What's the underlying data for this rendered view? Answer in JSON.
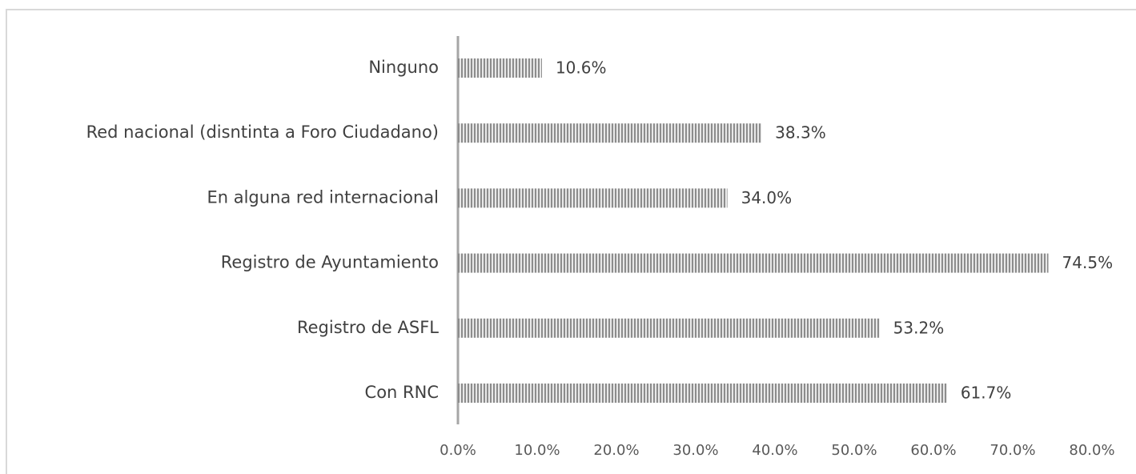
{
  "chart_data": {
    "type": "barh",
    "categories": [
      "Ninguno",
      "Red nacional (disntinta a Foro Ciudadano)",
      "En alguna red internacional",
      "Registro de Ayuntamiento",
      "Registro de ASFL",
      "Con RNC"
    ],
    "values": [
      10.6,
      38.3,
      34.0,
      74.5,
      53.2,
      61.7
    ],
    "value_labels": [
      "10.6%",
      "38.3%",
      "34.0%",
      "74.5%",
      "53.2%",
      "61.7%"
    ],
    "color": "#8c8c8c",
    "xlim": [
      0,
      80
    ],
    "xticks": [
      {
        "value": 0,
        "label": "0.0%"
      },
      {
        "value": 10,
        "label": "10.0%"
      },
      {
        "value": 20,
        "label": "20.0%"
      },
      {
        "value": 30,
        "label": "30.0%"
      },
      {
        "value": 40,
        "label": "40.0%"
      },
      {
        "value": 50,
        "label": "50.0%"
      },
      {
        "value": 60,
        "label": "60.0%"
      },
      {
        "value": 70,
        "label": "70.0%"
      },
      {
        "value": 80,
        "label": "80.0%"
      }
    ]
  }
}
